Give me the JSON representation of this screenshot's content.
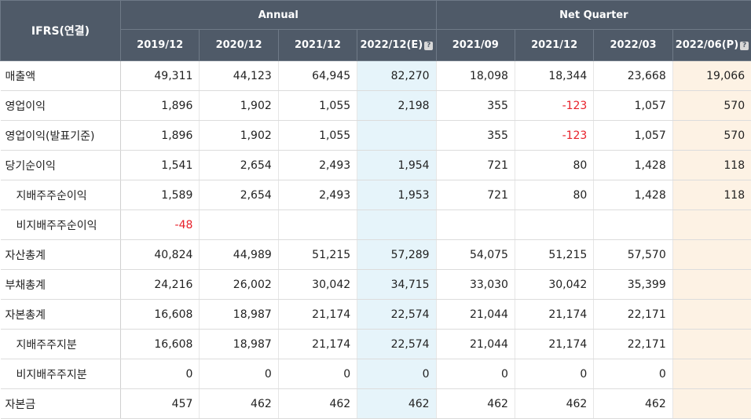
{
  "header": {
    "ifrs_label": "IFRS(연결)",
    "annual_label": "Annual",
    "quarter_label": "Net Quarter",
    "columns": [
      "2019/12",
      "2020/12",
      "2021/12",
      "2022/12(E)",
      "2021/09",
      "2021/12",
      "2022/03",
      "2022/06(P)"
    ],
    "help_icon": "question-mark-icon"
  },
  "rows": [
    {
      "label": "매출액",
      "values": [
        "49,311",
        "44,123",
        "64,945",
        "82,270",
        "18,098",
        "18,344",
        "23,668",
        "19,066"
      ]
    },
    {
      "label": "영업이익",
      "values": [
        "1,896",
        "1,902",
        "1,055",
        "2,198",
        "355",
        "-123",
        "1,057",
        "570"
      ]
    },
    {
      "label": "영업이익(발표기준)",
      "values": [
        "1,896",
        "1,902",
        "1,055",
        "",
        "355",
        "-123",
        "1,057",
        "570"
      ]
    },
    {
      "label": "당기순이익",
      "values": [
        "1,541",
        "2,654",
        "2,493",
        "1,954",
        "721",
        "80",
        "1,428",
        "118"
      ]
    },
    {
      "label": "지배주주순이익",
      "values": [
        "1,589",
        "2,654",
        "2,493",
        "1,953",
        "721",
        "80",
        "1,428",
        "118"
      ]
    },
    {
      "label": "비지배주주순이익",
      "values": [
        "-48",
        "",
        "",
        "",
        "",
        "",
        "",
        ""
      ]
    },
    {
      "label": "자산총계",
      "values": [
        "40,824",
        "44,989",
        "51,215",
        "57,289",
        "54,075",
        "51,215",
        "57,570",
        ""
      ]
    },
    {
      "label": "부채총계",
      "values": [
        "24,216",
        "26,002",
        "30,042",
        "34,715",
        "33,030",
        "30,042",
        "35,399",
        ""
      ]
    },
    {
      "label": "자본총계",
      "values": [
        "16,608",
        "18,987",
        "21,174",
        "22,574",
        "21,044",
        "21,174",
        "22,171",
        ""
      ]
    },
    {
      "label": "지배주주지분",
      "values": [
        "16,608",
        "18,987",
        "21,174",
        "22,574",
        "21,044",
        "21,174",
        "22,171",
        ""
      ]
    },
    {
      "label": "비지배주주지분",
      "values": [
        "0",
        "0",
        "0",
        "0",
        "0",
        "0",
        "0",
        ""
      ]
    },
    {
      "label": "자본금",
      "values": [
        "457",
        "462",
        "462",
        "462",
        "462",
        "462",
        "462",
        ""
      ]
    }
  ],
  "colors": {
    "header_bg": "#4f5a68",
    "estimate_bg": "#e6f4fa",
    "preliminary_bg": "#fdf2e4",
    "negative": "#e8202a"
  }
}
